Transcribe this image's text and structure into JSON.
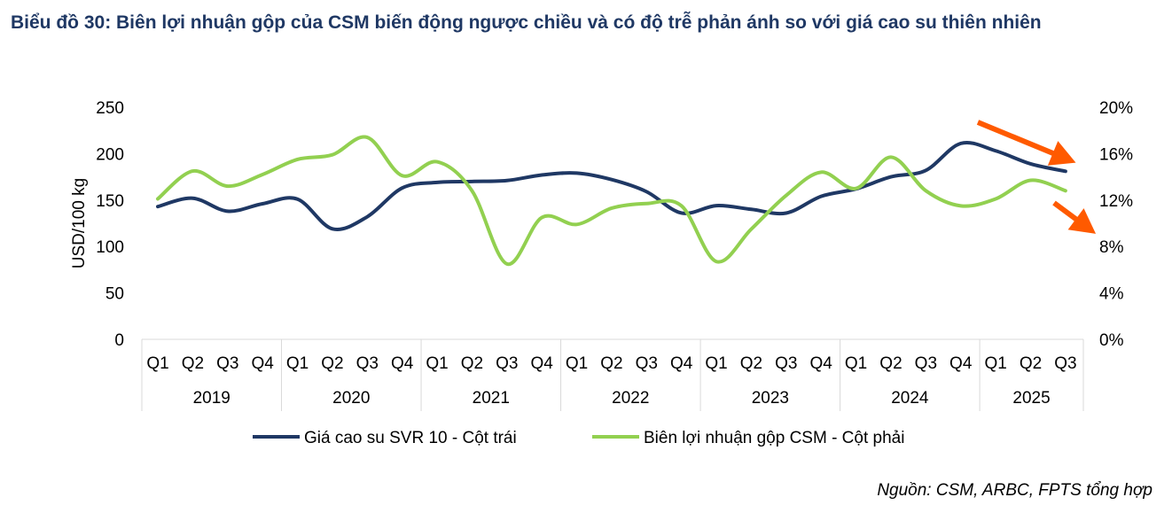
{
  "title": "Biểu đồ 30: Biên lợi nhuận gộp của CSM biến động ngược chiều và có độ trễ phản ánh so với giá cao su thiên nhiên",
  "source": "Nguồn: CSM, ARBC, FPTS tổng hợp",
  "chart_data": {
    "type": "line",
    "title": "Biểu đồ 30: Biên lợi nhuận gộp của CSM biến động ngược chiều và có độ trễ phản ánh so với giá cao su thiên nhiên",
    "ylabel": "USD/100 kg",
    "ylim": [
      0,
      250
    ],
    "y2lim": [
      0,
      20
    ],
    "yticks": [
      "0",
      "50",
      "100",
      "150",
      "200",
      "250"
    ],
    "y2ticks": [
      "0%",
      "4%",
      "8%",
      "12%",
      "16%",
      "20%"
    ],
    "quarters": [
      "Q1",
      "Q2",
      "Q3",
      "Q4",
      "Q1",
      "Q2",
      "Q3",
      "Q4",
      "Q1",
      "Q2",
      "Q3",
      "Q4",
      "Q1",
      "Q2",
      "Q3",
      "Q4",
      "Q1",
      "Q2",
      "Q3",
      "Q4",
      "Q1",
      "Q2",
      "Q3",
      "Q4",
      "Q1",
      "Q2",
      "Q3"
    ],
    "years": [
      {
        "label": "2019",
        "n": 4
      },
      {
        "label": "2020",
        "n": 4
      },
      {
        "label": "2021",
        "n": 4
      },
      {
        "label": "2022",
        "n": 4
      },
      {
        "label": "2023",
        "n": 4
      },
      {
        "label": "2024",
        "n": 4
      },
      {
        "label": "2025",
        "n": 3
      }
    ],
    "legend_position": "bottom",
    "series": [
      {
        "name": "Giá cao su SVR 10 - Cột trái",
        "axis": "left",
        "color": "#1f3864",
        "values": [
          143,
          152,
          138,
          146,
          151,
          119,
          132,
          163,
          169,
          170,
          171,
          177,
          179,
          172,
          159,
          136,
          144,
          140,
          136,
          154,
          162,
          175,
          182,
          211,
          203,
          189,
          181
        ]
      },
      {
        "name": "Biên lợi nhuận gộp CSM - Cột phải",
        "axis": "right",
        "color": "#92d050",
        "values": [
          12.1,
          14.5,
          13.2,
          14.2,
          15.5,
          15.9,
          17.4,
          14.1,
          15.3,
          12.8,
          6.5,
          10.5,
          9.9,
          11.3,
          11.7,
          11.5,
          6.7,
          9.5,
          12.4,
          14.4,
          13.0,
          15.7,
          12.8,
          11.5,
          12.1,
          13.7,
          12.8
        ]
      }
    ],
    "annotations": [
      {
        "type": "arrow",
        "color": "#ff5a00",
        "meaning": "price down"
      },
      {
        "type": "arrow",
        "color": "#ff5a00",
        "meaning": "margin down"
      }
    ]
  }
}
